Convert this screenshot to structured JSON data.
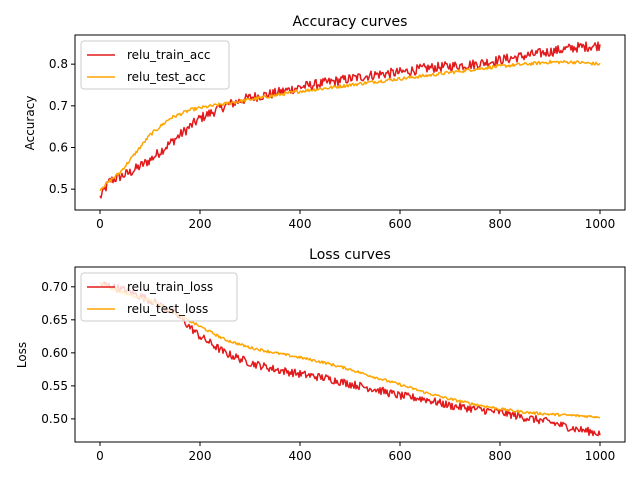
{
  "chart_data": [
    {
      "type": "line",
      "title": "Accuracy curves",
      "xlabel": "",
      "ylabel": "Accuracy",
      "xlim": [
        -50,
        1050
      ],
      "ylim": [
        0.45,
        0.87
      ],
      "xticks": [
        0,
        200,
        400,
        600,
        800,
        1000
      ],
      "yticks": [
        0.5,
        0.6,
        0.7,
        0.8
      ],
      "grid": false,
      "legend": "upper-left",
      "series": [
        {
          "name": "relu_train_acc",
          "color": "#e31a1c",
          "x": [
            0,
            20,
            40,
            60,
            80,
            100,
            120,
            140,
            160,
            180,
            200,
            250,
            300,
            350,
            400,
            450,
            500,
            550,
            600,
            650,
            700,
            750,
            800,
            850,
            900,
            950,
            1000
          ],
          "y": [
            0.48,
            0.52,
            0.53,
            0.54,
            0.555,
            0.57,
            0.59,
            0.61,
            0.63,
            0.65,
            0.67,
            0.7,
            0.72,
            0.73,
            0.745,
            0.755,
            0.765,
            0.775,
            0.78,
            0.79,
            0.795,
            0.8,
            0.81,
            0.82,
            0.83,
            0.84,
            0.845
          ],
          "noise": 0.012
        },
        {
          "name": "relu_test_acc",
          "color": "#ffa500",
          "x": [
            0,
            20,
            40,
            60,
            80,
            100,
            120,
            140,
            160,
            180,
            200,
            250,
            300,
            350,
            400,
            450,
            500,
            550,
            600,
            650,
            700,
            750,
            800,
            850,
            900,
            950,
            1000
          ],
          "y": [
            0.5,
            0.52,
            0.54,
            0.57,
            0.6,
            0.63,
            0.65,
            0.67,
            0.68,
            0.69,
            0.695,
            0.705,
            0.715,
            0.725,
            0.735,
            0.742,
            0.75,
            0.758,
            0.765,
            0.772,
            0.78,
            0.788,
            0.795,
            0.8,
            0.805,
            0.805,
            0.8
          ],
          "noise": 0.004
        }
      ]
    },
    {
      "type": "line",
      "title": "Loss curves",
      "xlabel": "",
      "ylabel": "Loss",
      "xlim": [
        -50,
        1050
      ],
      "ylim": [
        0.465,
        0.73
      ],
      "xticks": [
        0,
        200,
        400,
        600,
        800,
        1000
      ],
      "yticks": [
        0.5,
        0.55,
        0.6,
        0.65,
        0.7
      ],
      "grid": false,
      "legend": "upper-left",
      "series": [
        {
          "name": "relu_train_loss",
          "color": "#e31a1c",
          "x": [
            0,
            50,
            100,
            150,
            200,
            250,
            300,
            350,
            400,
            450,
            500,
            550,
            600,
            650,
            700,
            750,
            800,
            850,
            900,
            950,
            1000
          ],
          "y": [
            0.705,
            0.695,
            0.68,
            0.66,
            0.625,
            0.6,
            0.585,
            0.575,
            0.568,
            0.562,
            0.553,
            0.545,
            0.535,
            0.53,
            0.52,
            0.515,
            0.51,
            0.502,
            0.495,
            0.485,
            0.478
          ],
          "noise": 0.006
        },
        {
          "name": "relu_test_loss",
          "color": "#ffa500",
          "x": [
            0,
            50,
            100,
            150,
            200,
            250,
            300,
            350,
            400,
            450,
            500,
            550,
            600,
            650,
            700,
            750,
            800,
            850,
            900,
            950,
            1000
          ],
          "y": [
            0.705,
            0.69,
            0.68,
            0.66,
            0.64,
            0.62,
            0.608,
            0.6,
            0.593,
            0.585,
            0.575,
            0.563,
            0.552,
            0.54,
            0.53,
            0.522,
            0.515,
            0.51,
            0.507,
            0.505,
            0.503
          ],
          "noise": 0.002
        }
      ]
    }
  ]
}
